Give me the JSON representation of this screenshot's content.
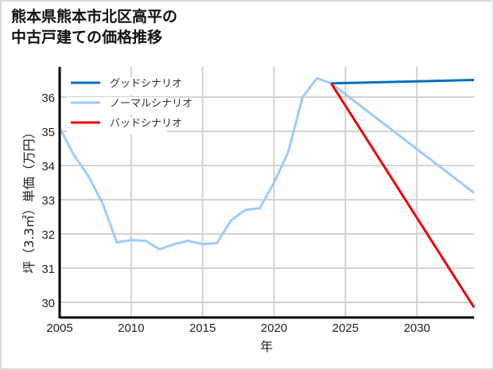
{
  "title_line1": "熊本県熊本市北区高平の",
  "title_line2": "中古戸建ての価格推移",
  "chart_data": {
    "type": "line",
    "title": "熊本県熊本市北区高平の中古戸建ての価格推移",
    "xlabel": "年",
    "ylabel": "坪（3.3㎡）単価（万円）",
    "xlim": [
      2005,
      2034
    ],
    "ylim": [
      29.6,
      36.9
    ],
    "xticks": [
      2005,
      2010,
      2015,
      2020,
      2025,
      2030
    ],
    "yticks": [
      30,
      31,
      32,
      33,
      34,
      35,
      36
    ],
    "grid": true,
    "legend_position": "upper left",
    "series": [
      {
        "name": "グッドシナリオ",
        "color": "#0070c0",
        "x": [
          2024,
          2034
        ],
        "values": [
          36.4,
          36.5
        ]
      },
      {
        "name": "ノーマルシナリオ",
        "color": "#99ccff",
        "x": [
          2005,
          2006,
          2007,
          2008,
          2009,
          2010,
          2011,
          2012,
          2013,
          2014,
          2015,
          2016,
          2017,
          2018,
          2019,
          2020,
          2021,
          2022,
          2023,
          2024,
          2034
        ],
        "values": [
          35.1,
          34.3,
          33.7,
          32.9,
          31.75,
          31.82,
          31.8,
          31.55,
          31.7,
          31.8,
          31.7,
          31.73,
          32.4,
          32.7,
          32.75,
          33.5,
          34.4,
          36.0,
          36.55,
          36.4,
          33.2
        ]
      },
      {
        "name": "バッドシナリオ",
        "color": "#ee0000",
        "x": [
          2024,
          2034
        ],
        "values": [
          36.4,
          29.85
        ]
      }
    ]
  }
}
